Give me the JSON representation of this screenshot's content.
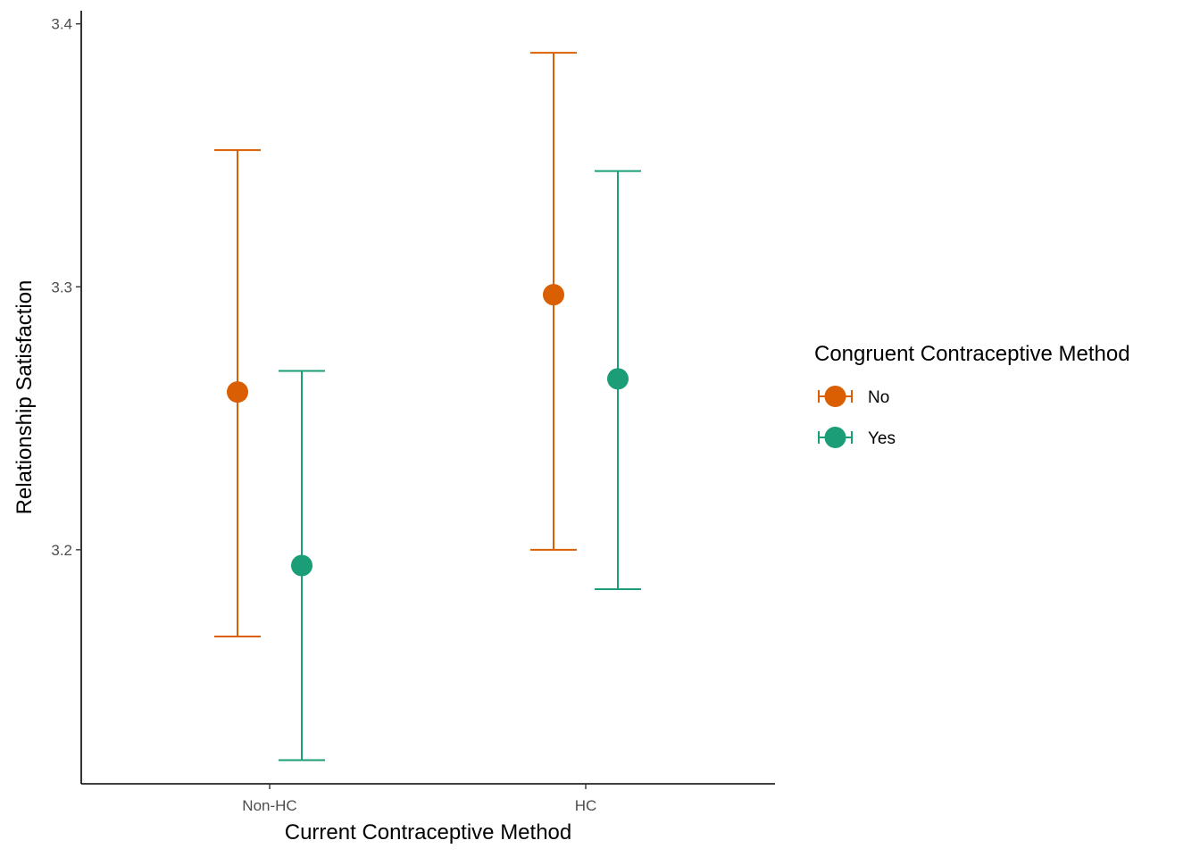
{
  "chart_data": {
    "type": "scatter",
    "subtype": "point-with-errorbars",
    "title": "",
    "xlabel": "Current Contraceptive Method",
    "ylabel": "Relationship Satisfaction",
    "categories": [
      "Non-HC",
      "HC"
    ],
    "yticks": [
      3.2,
      3.3,
      3.4
    ],
    "ytick_labels": [
      "3.2",
      "3.3",
      "3.4"
    ],
    "ylim": [
      3.111,
      3.405
    ],
    "grid": false,
    "legend": {
      "title": "Congruent Contraceptive Method",
      "placement": "right"
    },
    "series": [
      {
        "name": "No",
        "color": "#D95F02",
        "points": [
          {
            "x": "Non-HC",
            "y": 3.26,
            "ymin": 3.167,
            "ymax": 3.352
          },
          {
            "x": "HC",
            "y": 3.297,
            "ymin": 3.2,
            "ymax": 3.389
          }
        ]
      },
      {
        "name": "Yes",
        "color": "#1B9E77",
        "points": [
          {
            "x": "Non-HC",
            "y": 3.194,
            "ymin": 3.12,
            "ymax": 3.268
          },
          {
            "x": "HC",
            "y": 3.265,
            "ymin": 3.185,
            "ymax": 3.344
          }
        ]
      }
    ]
  }
}
